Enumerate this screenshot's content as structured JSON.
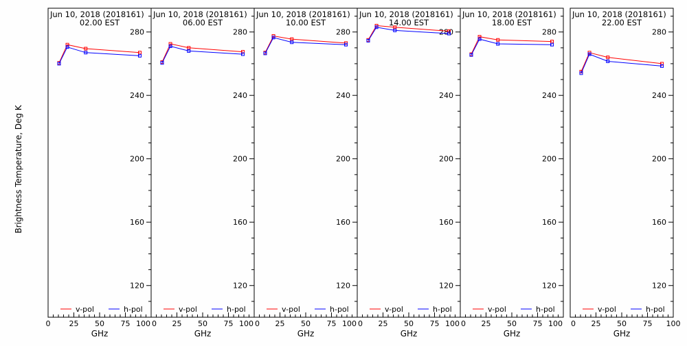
{
  "chart_data": {
    "type": "line",
    "ylabel": "Brightness Temperature, Deg K",
    "xlabel": "GHz",
    "xlim": [
      0,
      100
    ],
    "ylim": [
      100,
      295
    ],
    "xticks": [
      0,
      25,
      50,
      75,
      100
    ],
    "xtick_labels": [
      "0",
      "25",
      "50",
      "75",
      "100"
    ],
    "yticks": [
      120,
      160,
      200,
      240,
      280
    ],
    "legend": {
      "placement": "bottom"
    },
    "colors": {
      "v-pol": "#ff0000",
      "h-pol": "#0000ff"
    },
    "x": [
      10.65,
      18.7,
      36.5,
      89.0
    ],
    "panels": [
      {
        "title": "Jun 10, 2018 (2018161)",
        "subtitle": "02.00 EST",
        "series": [
          {
            "name": "v-pol",
            "values": [
              260.5,
              272.0,
              269.5,
              267.0
            ]
          },
          {
            "name": "h-pol",
            "values": [
              260.0,
              270.5,
              267.0,
              265.0
            ]
          }
        ]
      },
      {
        "title": "Jun 10, 2018 (2018161)",
        "subtitle": "06.00 EST",
        "series": [
          {
            "name": "v-pol",
            "values": [
              261.0,
              272.5,
              270.0,
              267.5
            ]
          },
          {
            "name": "h-pol",
            "values": [
              260.5,
              271.0,
              268.0,
              266.0
            ]
          }
        ]
      },
      {
        "title": "Jun 10, 2018 (2018161)",
        "subtitle": "10.00 EST",
        "series": [
          {
            "name": "v-pol",
            "values": [
              267.0,
              277.5,
              275.5,
              273.0
            ]
          },
          {
            "name": "h-pol",
            "values": [
              266.5,
              276.5,
              273.5,
              272.0
            ]
          }
        ]
      },
      {
        "title": "Jun 10, 2018 (2018161)",
        "subtitle": "14.00 EST",
        "series": [
          {
            "name": "v-pol",
            "values": [
              275.0,
              284.0,
              283.0,
              280.5
            ]
          },
          {
            "name": "h-pol",
            "values": [
              274.5,
              283.0,
              281.0,
              279.0
            ]
          }
        ]
      },
      {
        "title": "Jun 10, 2018 (2018161)",
        "subtitle": "18.00 EST",
        "series": [
          {
            "name": "v-pol",
            "values": [
              266.0,
              277.0,
              275.0,
              274.0
            ]
          },
          {
            "name": "h-pol",
            "values": [
              265.5,
              275.5,
              272.5,
              272.0
            ]
          }
        ]
      },
      {
        "title": "Jun 10, 2018 (2018161)",
        "subtitle": "22.00 EST",
        "series": [
          {
            "name": "v-pol",
            "values": [
              255.0,
              267.0,
              264.0,
              260.0
            ]
          },
          {
            "name": "h-pol",
            "values": [
              254.0,
              266.0,
              261.5,
              258.5
            ]
          }
        ]
      }
    ]
  }
}
